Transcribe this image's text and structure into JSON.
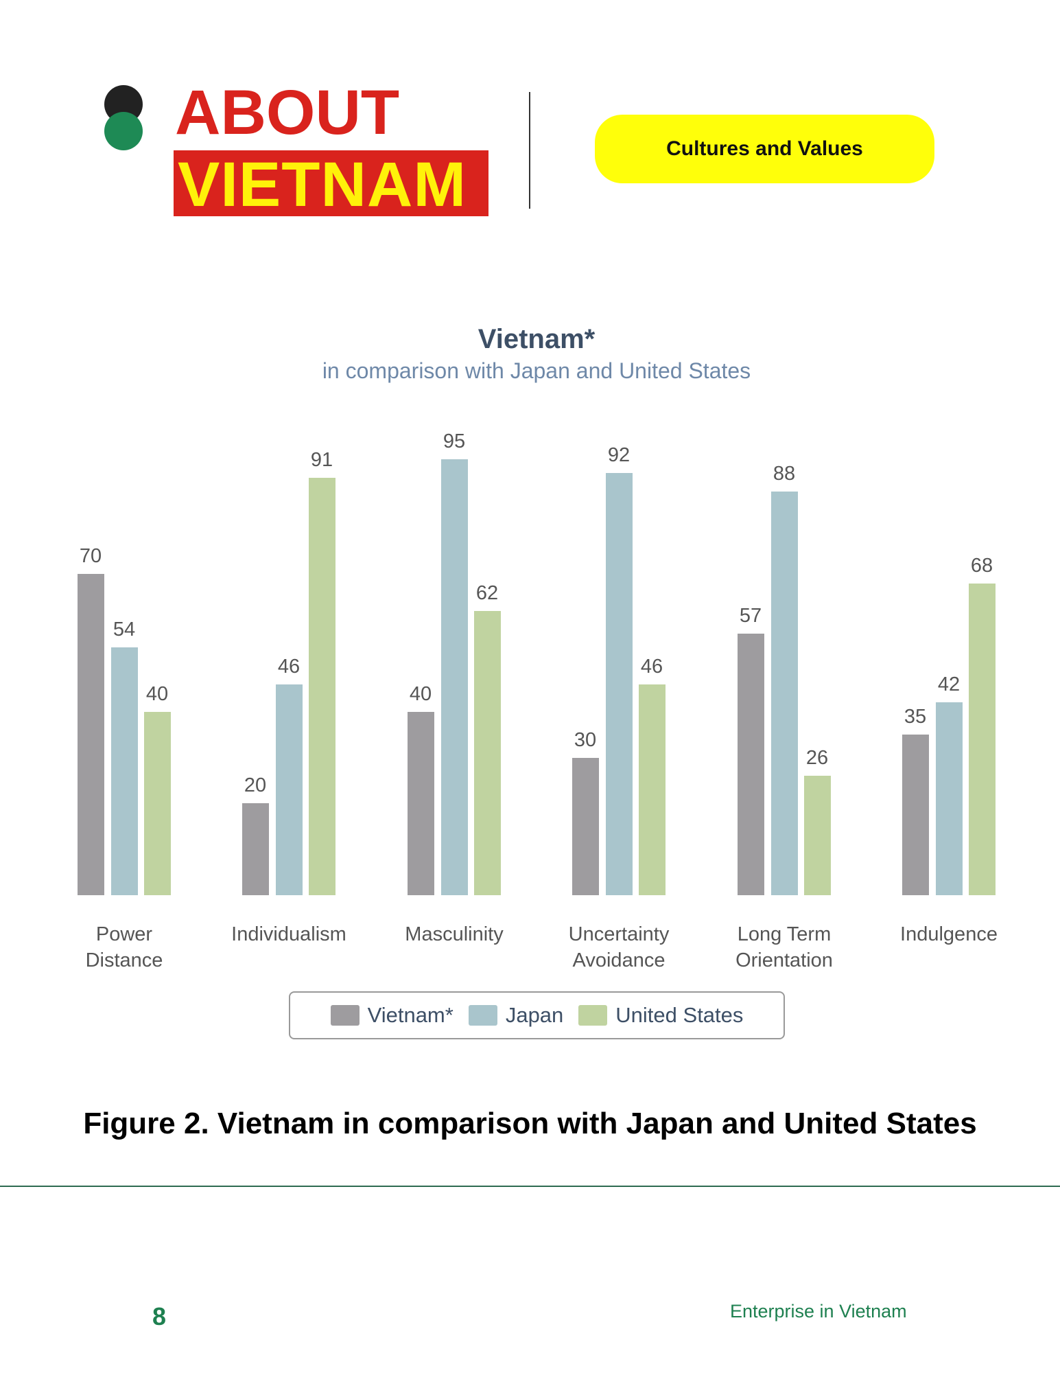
{
  "header": {
    "title_line1": "ABOUT",
    "title_line2": "VIETNAM",
    "tag": "Cultures and Values"
  },
  "chart_data": {
    "type": "bar",
    "title": "Vietnam*",
    "subtitle": "in comparison with Japan and United States",
    "categories": [
      "Power Distance",
      "Individualism",
      "Masculinity",
      "Uncertainty Avoidance",
      "Long Term Orientation",
      "Indulgence"
    ],
    "series": [
      {
        "name": "Vietnam*",
        "color": "#9e9c9f",
        "values": [
          70,
          20,
          40,
          30,
          57,
          35
        ]
      },
      {
        "name": "Japan",
        "color": "#a9c5cc",
        "values": [
          54,
          46,
          95,
          92,
          88,
          42
        ]
      },
      {
        "name": "United States",
        "color": "#c0d3a0",
        "values": [
          40,
          91,
          62,
          46,
          26,
          68
        ]
      }
    ],
    "legend": "bottom"
  },
  "caption": "Figure 2. Vietnam in comparison with Japan and United States",
  "footer": {
    "page": "8",
    "text": "Enterprise in Vietnam"
  }
}
